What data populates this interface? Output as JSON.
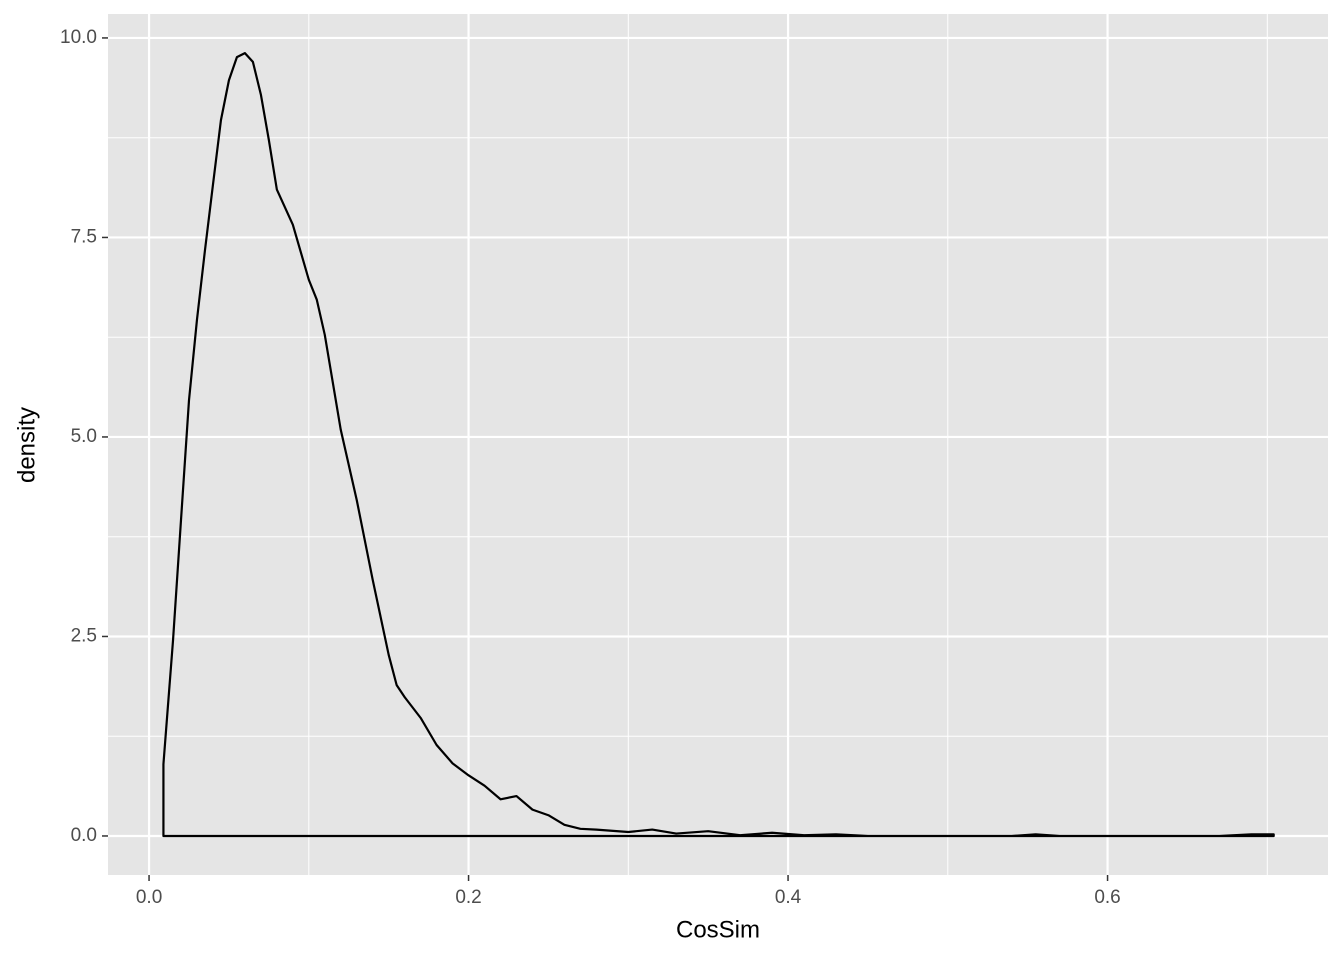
{
  "chart_data": {
    "type": "density",
    "x_label": "CosSim",
    "y_label": "density",
    "x": [
      0.009,
      0.015,
      0.02,
      0.025,
      0.03,
      0.035,
      0.04,
      0.045,
      0.05,
      0.055,
      0.06,
      0.065,
      0.07,
      0.075,
      0.08,
      0.09,
      0.1,
      0.105,
      0.11,
      0.12,
      0.13,
      0.14,
      0.15,
      0.155,
      0.16,
      0.17,
      0.18,
      0.19,
      0.2,
      0.21,
      0.22,
      0.23,
      0.24,
      0.25,
      0.26,
      0.27,
      0.28,
      0.3,
      0.315,
      0.33,
      0.35,
      0.37,
      0.39,
      0.41,
      0.43,
      0.45,
      0.54,
      0.555,
      0.57,
      0.67,
      0.69,
      0.704
    ],
    "y": [
      0.9,
      2.45,
      3.96,
      5.46,
      6.47,
      7.34,
      8.16,
      8.97,
      9.47,
      9.76,
      9.81,
      9.7,
      9.29,
      8.72,
      8.1,
      7.66,
      6.97,
      6.72,
      6.28,
      5.09,
      4.21,
      3.21,
      2.27,
      1.89,
      1.74,
      1.48,
      1.14,
      0.91,
      0.76,
      0.63,
      0.46,
      0.5,
      0.33,
      0.26,
      0.14,
      0.09,
      0.08,
      0.05,
      0.08,
      0.03,
      0.06,
      0.01,
      0.04,
      0.01,
      0.02,
      0,
      0,
      0.02,
      0,
      0,
      0.02,
      0.02
    ],
    "color": "#000000",
    "panel_color": "#e5e5e5",
    "grid": true,
    "xlim": [
      -0.0257,
      0.738
    ],
    "ylim": [
      -0.489,
      10.3
    ],
    "xticks": [
      {
        "value": 0,
        "label": "0.0"
      },
      0.2,
      0.4,
      0.6
    ],
    "yticks": [
      {
        "value": 0,
        "label": "0.0"
      },
      2.5,
      {
        "value": 5,
        "label": "5.0"
      },
      7.5,
      {
        "value": 10,
        "label": "10.0"
      }
    ],
    "x_minor_breaks": [
      0.1,
      0.3,
      0.5,
      0.7
    ],
    "y_minor_breaks": [
      1.25,
      3.75,
      6.25,
      8.75
    ]
  }
}
